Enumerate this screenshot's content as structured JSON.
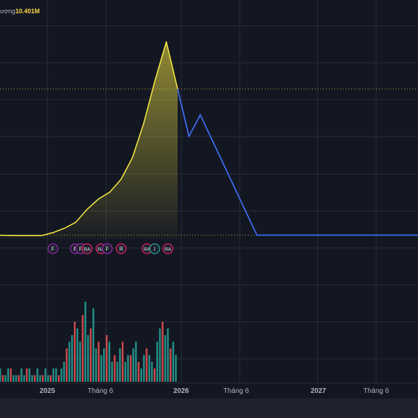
{
  "header": {
    "volume_label": "ượng",
    "volume_value": "10.401M"
  },
  "colors": {
    "background": "#131722",
    "grid": "#2a2e39",
    "price_line": "#f5e642",
    "area_fill_top": "#f5e642",
    "forecast_line": "#3d6df2",
    "volume_up": "#26a69a",
    "volume_down": "#ef5350",
    "marker_pink": "#e91e63",
    "marker_teal": "#26a69a",
    "marker_purple": "#9c27b0",
    "reference_line": "#f5d742",
    "axis_text": "#b2b5be"
  },
  "chart_data": {
    "type": "area",
    "title": "",
    "xlabel": "",
    "ylabel": "",
    "grid": true,
    "x_ticks": [
      "2025",
      "Tháng 6",
      "2026",
      "Tháng 6",
      "2027",
      "Tháng 6"
    ],
    "price_series": {
      "name": "",
      "x": [
        "2024-09",
        "2024-10",
        "2024-11",
        "2024-12",
        "2025-01",
        "2025-02",
        "2025-03",
        "2025-04",
        "2025-05",
        "2025-06",
        "2025-07",
        "2025-08",
        "2025-09",
        "2025-10",
        "2025-11",
        "2025-12",
        "2026-01"
      ],
      "values": [
        1.0,
        0.97,
        0.95,
        0.95,
        0.95,
        1.3,
        1.8,
        2.5,
        4.0,
        5.2,
        6.0,
        7.5,
        10.0,
        14.0,
        19.0,
        23.5,
        18.0
      ]
    },
    "forecast_series": {
      "name": "",
      "x": [
        "2026-01",
        "2026-02",
        "2026-03",
        "2026-08",
        "2027-12"
      ],
      "values": [
        18.0,
        12.5,
        15.0,
        1.0,
        1.0
      ]
    },
    "reference_levels": [
      18.0,
      1.0
    ],
    "event_markers": [
      "F",
      "F",
      "F",
      "RA",
      "RA",
      "F",
      "R",
      "RA",
      "I",
      "RA"
    ],
    "volume": {
      "x_range": [
        "2024-09",
        "2026-01"
      ],
      "values": [
        2,
        1,
        1,
        2,
        2,
        1,
        1,
        1,
        2,
        1,
        2,
        2,
        1,
        1,
        2,
        1,
        1,
        2,
        1,
        1,
        2,
        2,
        1,
        2,
        3,
        5,
        6,
        7,
        9,
        8,
        6,
        10,
        12,
        7,
        8,
        11,
        5,
        6,
        4,
        5,
        7,
        6,
        3,
        4,
        3,
        5,
        6,
        3,
        4,
        4,
        5,
        6,
        3,
        2,
        4,
        5,
        4,
        3,
        2,
        6,
        8,
        9,
        7,
        8,
        5,
        6,
        4
      ]
    }
  }
}
